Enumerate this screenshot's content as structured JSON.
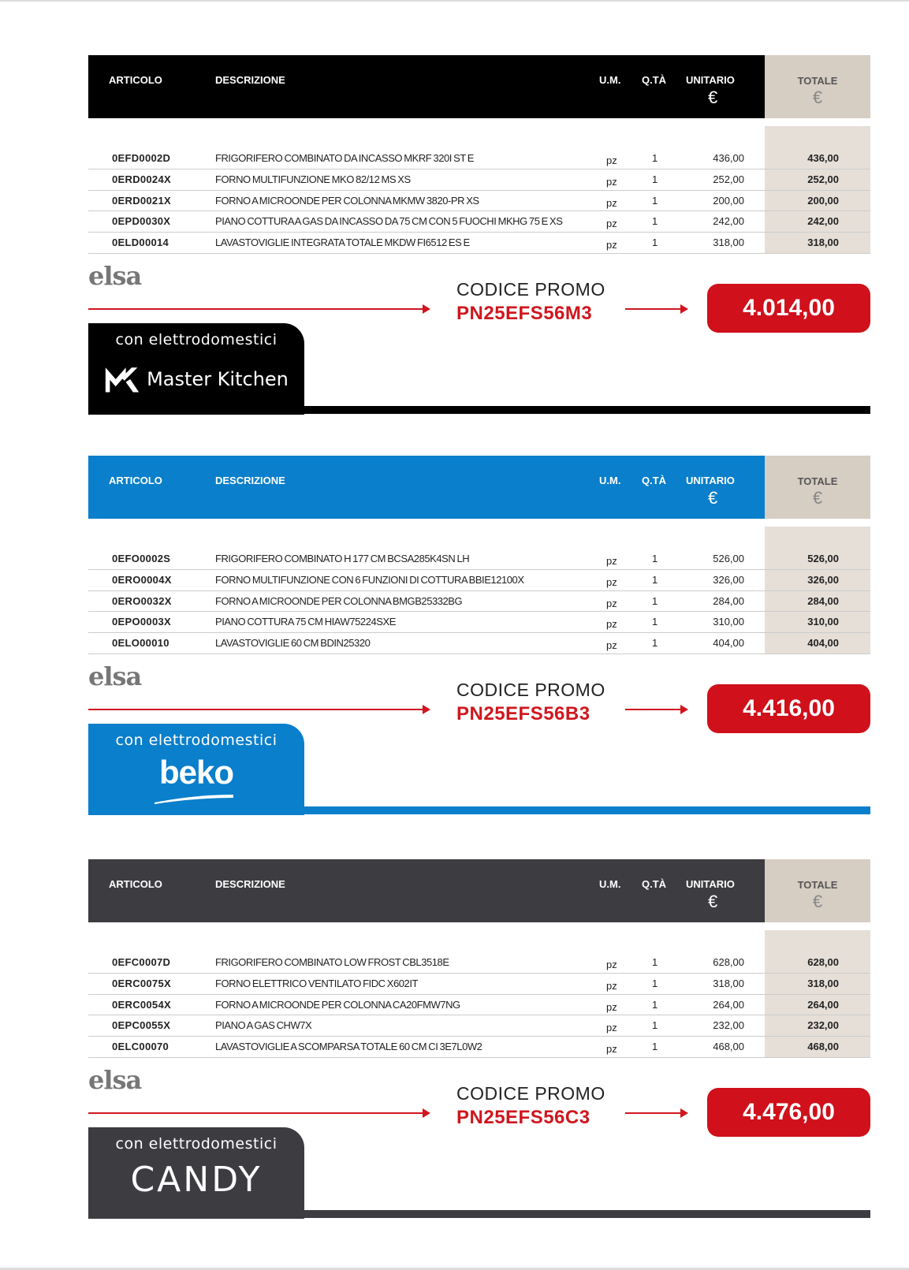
{
  "columns": {
    "articolo": "ARTICOLO",
    "descrizione": "DESCRIZIONE",
    "um": "U.M.",
    "qta": "Q.TÀ",
    "unitario": "UNITARIO",
    "totale": "TOTALE",
    "currency": "€"
  },
  "footer": {
    "brand": "elsa",
    "promo_label": "CODICE PROMO",
    "con": "con elettrodomestici"
  },
  "sections": [
    {
      "color": "#000000",
      "brand": "Master Kitchen",
      "promo_code": "PN25EFS56M3",
      "total": "4.014,00",
      "rows": [
        {
          "art": "0EFD0002D",
          "desc": "FRIGORIFERO COMBINATO DA INCASSO MKRF 320I ST E",
          "um": "pz",
          "qta": "1",
          "unit": "436,00",
          "tot": "436,00"
        },
        {
          "art": "0ERD0024X",
          "desc": "FORNO MULTIFUNZIONE MKO 82/12 MS XS",
          "um": "pz",
          "qta": "1",
          "unit": "252,00",
          "tot": "252,00"
        },
        {
          "art": "0ERD0021X",
          "desc": "FORNO A MICROONDE PER COLONNA MKMW 3820-PR XS",
          "um": "pz",
          "qta": "1",
          "unit": "200,00",
          "tot": "200,00"
        },
        {
          "art": "0EPD0030X",
          "desc": "PIANO COTTURA A GAS DA INCASSO DA 75 CM CON 5 FUOCHI MKHG 75 E XS",
          "um": "pz",
          "qta": "1",
          "unit": "242,00",
          "tot": "242,00"
        },
        {
          "art": "0ELD00014",
          "desc": "LAVASTOVIGLIE INTEGRATA TOTALE MKDW FI6512 ES E",
          "um": "pz",
          "qta": "1",
          "unit": "318,00",
          "tot": "318,00"
        }
      ]
    },
    {
      "color": "#0a7fcb",
      "brand": "beko",
      "promo_code": "PN25EFS56B3",
      "total": "4.416,00",
      "rows": [
        {
          "art": "0EFO0002S",
          "desc": "FRIGORIFERO COMBINATO H 177 CM BCSA285K4SN LH",
          "um": "pz",
          "qta": "1",
          "unit": "526,00",
          "tot": "526,00"
        },
        {
          "art": "0ERO0004X",
          "desc": "FORNO MULTIFUNZIONE CON 6 FUNZIONI DI COTTURA BBIE12100X",
          "um": "pz",
          "qta": "1",
          "unit": "326,00",
          "tot": "326,00"
        },
        {
          "art": "0ERO0032X",
          "desc": "FORNO A MICROONDE PER COLONNA BMGB25332BG",
          "um": "pz",
          "qta": "1",
          "unit": "284,00",
          "tot": "284,00"
        },
        {
          "art": "0EPO0003X",
          "desc": "PIANO COTTURA 75 CM HIAW75224SXE",
          "um": "pz",
          "qta": "1",
          "unit": "310,00",
          "tot": "310,00"
        },
        {
          "art": "0ELO00010",
          "desc": "LAVASTOVIGLIE 60 CM BDIN25320",
          "um": "pz",
          "qta": "1",
          "unit": "404,00",
          "tot": "404,00"
        }
      ]
    },
    {
      "color": "#3d3c41",
      "brand": "CANDY",
      "promo_code": "PN25EFS56C3",
      "total": "4.476,00",
      "rows": [
        {
          "art": "0EFC0007D",
          "desc": "FRIGORIFERO COMBINATO LOW FROST CBL3518E",
          "um": "pz",
          "qta": "1",
          "unit": "628,00",
          "tot": "628,00"
        },
        {
          "art": "0ERC0075X",
          "desc": "FORNO ELETTRICO VENTILATO FIDC X602IT",
          "um": "pz",
          "qta": "1",
          "unit": "318,00",
          "tot": "318,00"
        },
        {
          "art": "0ERC0054X",
          "desc": "FORNO A MICROONDE PER COLONNA CA20FMW7NG",
          "um": "pz",
          "qta": "1",
          "unit": "264,00",
          "tot": "264,00"
        },
        {
          "art": "0EPC0055X",
          "desc": "PIANO A GAS CHW7X",
          "um": "pz",
          "qta": "1",
          "unit": "232,00",
          "tot": "232,00"
        },
        {
          "art": "0ELC00070",
          "desc": "LAVASTOVIGLIE A SCOMPARSA TOTALE 60 CM CI 3E7L0W2",
          "um": "pz",
          "qta": "1",
          "unit": "468,00",
          "tot": "468,00"
        }
      ]
    }
  ]
}
